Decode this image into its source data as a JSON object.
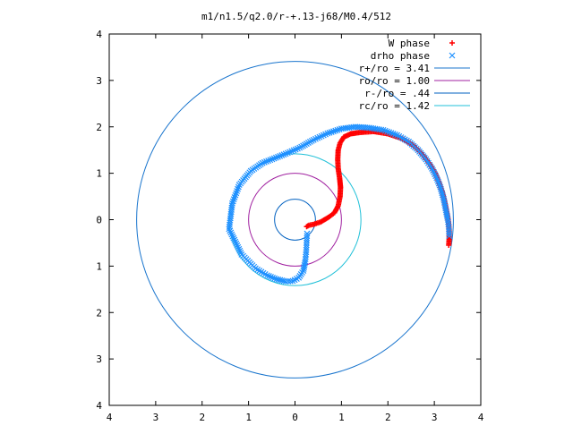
{
  "chart_data": {
    "type": "scatter",
    "title": "m1/n1.5/q2.0/r-+.13-j68/M0.4/512",
    "xlabel": "",
    "ylabel": "",
    "xlim": [
      -4,
      4
    ],
    "ylim": [
      -4,
      4
    ],
    "x_ticks": [
      {
        "value": -4,
        "label": "4"
      },
      {
        "value": -3,
        "label": "3"
      },
      {
        "value": -2,
        "label": "2"
      },
      {
        "value": -1,
        "label": "1"
      },
      {
        "value": 0,
        "label": "0"
      },
      {
        "value": 1,
        "label": "1"
      },
      {
        "value": 2,
        "label": "2"
      },
      {
        "value": 3,
        "label": "3"
      },
      {
        "value": 4,
        "label": "4"
      }
    ],
    "y_ticks": [
      {
        "value": 4,
        "label": "4"
      },
      {
        "value": 3,
        "label": "3"
      },
      {
        "value": 2,
        "label": "2"
      },
      {
        "value": 1,
        "label": "1"
      },
      {
        "value": 0,
        "label": "0"
      },
      {
        "value": -1,
        "label": "1"
      },
      {
        "value": -2,
        "label": "2"
      },
      {
        "value": -3,
        "label": "3"
      },
      {
        "value": -4,
        "label": "4"
      }
    ],
    "grid": false,
    "legend_position": "top-right",
    "series": [
      {
        "name": "W phase",
        "kind": "points",
        "marker": "+",
        "color": "#ff0000",
        "points": [
          [
            3.31,
            -0.55
          ],
          [
            3.32,
            -0.4
          ],
          [
            3.32,
            -0.25
          ],
          [
            3.31,
            -0.1
          ],
          [
            3.29,
            0.05
          ],
          [
            3.26,
            0.2
          ],
          [
            3.22,
            0.4
          ],
          [
            3.17,
            0.6
          ],
          [
            3.1,
            0.8
          ],
          [
            3.02,
            1.0
          ],
          [
            2.9,
            1.2
          ],
          [
            2.75,
            1.4
          ],
          [
            2.55,
            1.6
          ],
          [
            2.3,
            1.75
          ],
          [
            2.0,
            1.85
          ],
          [
            1.7,
            1.9
          ],
          [
            1.4,
            1.88
          ],
          [
            1.2,
            1.85
          ],
          [
            1.05,
            1.78
          ],
          [
            0.97,
            1.65
          ],
          [
            0.93,
            1.5
          ],
          [
            0.92,
            1.3
          ],
          [
            0.93,
            1.1
          ],
          [
            0.96,
            0.9
          ],
          [
            0.98,
            0.7
          ],
          [
            0.97,
            0.5
          ],
          [
            0.93,
            0.3
          ],
          [
            0.85,
            0.15
          ],
          [
            0.72,
            0.05
          ],
          [
            0.55,
            -0.05
          ],
          [
            0.4,
            -0.1
          ],
          [
            0.3,
            -0.12
          ],
          [
            0.25,
            -0.15
          ]
        ]
      },
      {
        "name": "drho phase",
        "kind": "points",
        "marker": "x",
        "color": "#1e90ff",
        "points": [
          [
            3.32,
            -0.35
          ],
          [
            3.31,
            -0.15
          ],
          [
            3.29,
            0.0
          ],
          [
            3.25,
            0.2
          ],
          [
            3.2,
            0.45
          ],
          [
            3.13,
            0.7
          ],
          [
            3.05,
            0.9
          ],
          [
            2.95,
            1.1
          ],
          [
            2.82,
            1.3
          ],
          [
            2.65,
            1.5
          ],
          [
            2.45,
            1.68
          ],
          [
            2.2,
            1.82
          ],
          [
            1.9,
            1.93
          ],
          [
            1.6,
            1.98
          ],
          [
            1.3,
            2.0
          ],
          [
            1.0,
            1.96
          ],
          [
            0.7,
            1.86
          ],
          [
            0.4,
            1.72
          ],
          [
            0.1,
            1.55
          ],
          [
            -0.2,
            1.42
          ],
          [
            -0.45,
            1.32
          ],
          [
            -0.7,
            1.22
          ],
          [
            -0.95,
            1.05
          ],
          [
            -1.2,
            0.75
          ],
          [
            -1.35,
            0.35
          ],
          [
            -1.42,
            -0.2
          ],
          [
            -1.15,
            -0.75
          ],
          [
            -0.85,
            -1.05
          ],
          [
            -0.6,
            -1.2
          ],
          [
            -0.4,
            -1.28
          ],
          [
            -0.2,
            -1.33
          ],
          [
            -0.05,
            -1.32
          ],
          [
            0.08,
            -1.25
          ],
          [
            0.18,
            -1.1
          ],
          [
            0.22,
            -0.9
          ],
          [
            0.24,
            -0.7
          ],
          [
            0.25,
            -0.5
          ],
          [
            0.26,
            -0.3
          ]
        ]
      },
      {
        "name": "r+/ro = 3.41",
        "kind": "circle",
        "radius": 3.41,
        "color": "#1874cd"
      },
      {
        "name": "ro/ro = 1.00",
        "kind": "circle",
        "radius": 1.0,
        "color": "#a020a0"
      },
      {
        "name": "r-/ro = .44",
        "kind": "circle",
        "radius": 0.44,
        "color": "#0060c0"
      },
      {
        "name": "rc/ro = 1.42",
        "kind": "circle",
        "radius": 1.42,
        "color": "#20c0d8"
      }
    ]
  }
}
